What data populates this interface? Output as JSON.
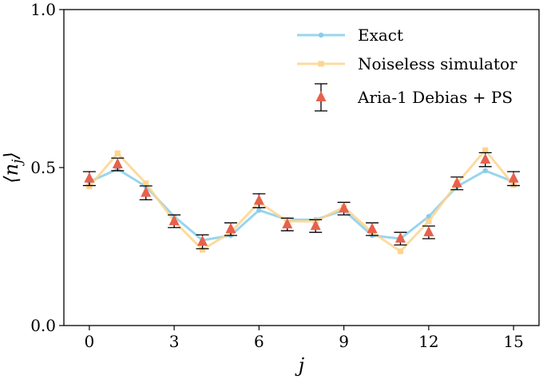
{
  "chart_data": {
    "type": "line",
    "xlabel": "j",
    "ylabel": "⟨n_j⟩",
    "xlim": [
      -0.9,
      15.9
    ],
    "ylim": [
      0.0,
      1.0
    ],
    "x_ticks": [
      0,
      3,
      6,
      9,
      12,
      15
    ],
    "x_tick_labels": [
      "0",
      "3",
      "6",
      "9",
      "12",
      "15"
    ],
    "y_ticks": [
      0.0,
      0.5,
      1.0
    ],
    "y_tick_labels": [
      "0.0",
      "0.5",
      "1.0"
    ],
    "grid": false,
    "legend_position": "top-right",
    "x": [
      0,
      1,
      2,
      3,
      4,
      5,
      6,
      7,
      8,
      9,
      10,
      11,
      12,
      13,
      14,
      15
    ],
    "series": [
      {
        "name": "Exact",
        "color": "#87ceeb",
        "marker": "circle",
        "values": [
          0.455,
          0.495,
          0.44,
          0.345,
          0.27,
          0.285,
          0.365,
          0.335,
          0.335,
          0.365,
          0.285,
          0.275,
          0.345,
          0.44,
          0.49,
          0.455
        ]
      },
      {
        "name": "Noiseless simulator",
        "color": "#fcd58e",
        "marker": "square",
        "values": [
          0.44,
          0.545,
          0.45,
          0.33,
          0.24,
          0.295,
          0.39,
          0.33,
          0.33,
          0.375,
          0.295,
          0.235,
          0.33,
          0.45,
          0.555,
          0.445
        ]
      },
      {
        "name": "Aria-1 Debias + PS",
        "color": "#e8604c",
        "marker": "triangle",
        "errorbars": true,
        "values": [
          0.465,
          0.51,
          0.42,
          0.33,
          0.265,
          0.305,
          0.395,
          0.32,
          0.315,
          0.37,
          0.305,
          0.275,
          0.295,
          0.45,
          0.525,
          0.465
        ],
        "errors": [
          0.022,
          0.02,
          0.022,
          0.02,
          0.022,
          0.02,
          0.022,
          0.02,
          0.02,
          0.02,
          0.02,
          0.02,
          0.02,
          0.02,
          0.022,
          0.022
        ]
      }
    ]
  }
}
